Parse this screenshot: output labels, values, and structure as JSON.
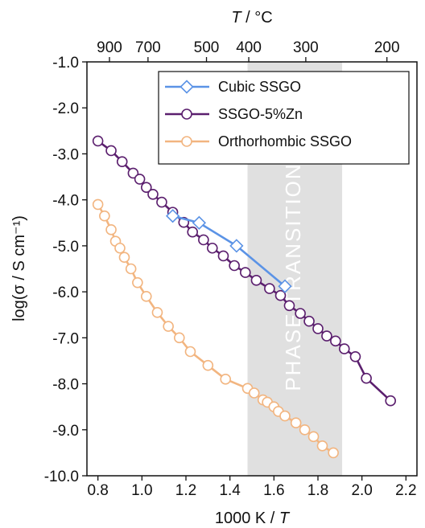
{
  "chart_data": {
    "type": "line",
    "xlabel_pre": "1000 K / ",
    "xlabel_var": "T",
    "ylabel": "log(σ / S cm⁻¹)",
    "top_axis_var": "T",
    "top_axis_unit": " / °C",
    "xlim": [
      0.75,
      2.25
    ],
    "ylim": [
      -10.0,
      -1.0
    ],
    "x_ticks": [
      0.8,
      1.0,
      1.2,
      1.4,
      1.6,
      1.8,
      2.0,
      2.2
    ],
    "x_tick_labels": [
      "0.8",
      "1.0",
      "1.2",
      "1.4",
      "1.6",
      "1.8",
      "2.0",
      "2.2"
    ],
    "y_ticks": [
      -10,
      -9,
      -8,
      -7,
      -6,
      -5,
      -4,
      -3,
      -2,
      -1
    ],
    "y_tick_labels": [
      "-10.0",
      "-9.0",
      "-8.0",
      "-7.0",
      "-6.0",
      "-5.0",
      "-4.0",
      "-3.0",
      "-2.0",
      "-1.0"
    ],
    "top_ticks_celsius": [
      900,
      700,
      500,
      400,
      300,
      200
    ],
    "top_tick_labels": [
      "900",
      "700",
      "500",
      "400",
      "300",
      "200"
    ],
    "shaded_region": {
      "x_range": [
        1.48,
        1.91
      ],
      "label": "PHASE TRANSITION",
      "color": "#e0e0e0"
    },
    "legend_position": "top-right",
    "grid": false,
    "series": [
      {
        "name": "Cubic SSGO",
        "color": "#5b93e6",
        "marker": "diamond",
        "x": [
          1.14,
          1.26,
          1.43,
          1.65
        ],
        "y": [
          -4.35,
          -4.5,
          -5.0,
          -5.88
        ]
      },
      {
        "name": "SSGO-5%Zn",
        "color": "#5b1f6e",
        "marker": "circle",
        "x": [
          0.8,
          0.86,
          0.91,
          0.96,
          0.99,
          1.02,
          1.05,
          1.09,
          1.14,
          1.19,
          1.23,
          1.28,
          1.32,
          1.37,
          1.42,
          1.47,
          1.52,
          1.58,
          1.63,
          1.67,
          1.72,
          1.76,
          1.8,
          1.84,
          1.88,
          1.92,
          1.97,
          2.02,
          2.13
        ],
        "y": [
          -2.72,
          -2.93,
          -3.17,
          -3.42,
          -3.55,
          -3.73,
          -3.88,
          -4.05,
          -4.27,
          -4.49,
          -4.7,
          -4.87,
          -5.05,
          -5.22,
          -5.43,
          -5.58,
          -5.75,
          -5.93,
          -6.08,
          -6.3,
          -6.47,
          -6.64,
          -6.8,
          -6.96,
          -7.07,
          -7.24,
          -7.41,
          -7.88,
          -8.37
        ]
      },
      {
        "name": "Orthorhombic SSGO",
        "color": "#f2b580",
        "marker": "circle",
        "x": [
          0.8,
          0.83,
          0.86,
          0.88,
          0.9,
          0.92,
          0.95,
          0.98,
          1.02,
          1.07,
          1.12,
          1.17,
          1.22,
          1.3,
          1.38,
          1.48,
          1.51,
          1.55,
          1.57,
          1.6,
          1.62,
          1.65,
          1.7,
          1.74,
          1.78,
          1.82,
          1.87
        ],
        "y": [
          -4.1,
          -4.35,
          -4.65,
          -4.9,
          -5.05,
          -5.25,
          -5.5,
          -5.8,
          -6.1,
          -6.45,
          -6.75,
          -7.0,
          -7.3,
          -7.6,
          -7.9,
          -8.1,
          -8.2,
          -8.35,
          -8.4,
          -8.5,
          -8.6,
          -8.7,
          -8.85,
          -9.0,
          -9.15,
          -9.35,
          -9.5
        ]
      }
    ]
  }
}
